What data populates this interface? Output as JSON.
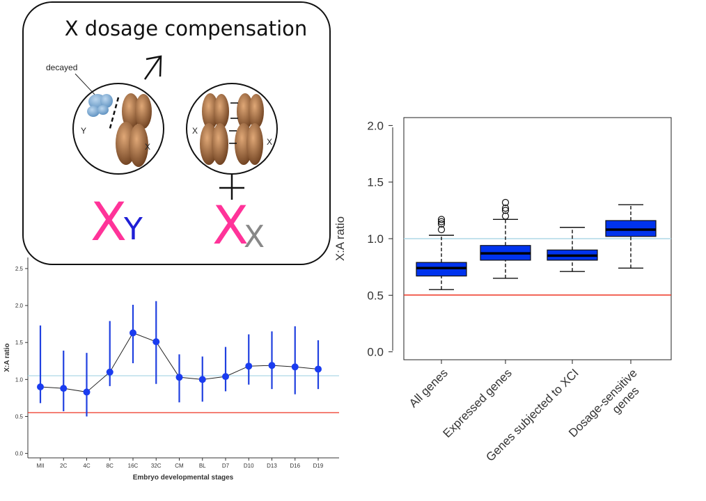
{
  "diagram": {
    "title": "X dosage compensation",
    "decayed_label": "decayed",
    "male_left_label": "Y",
    "male_right_label": "X",
    "female_left_label": "X",
    "female_right_label": "X",
    "male_big_letter": "X",
    "male_small_letter": "Y",
    "female_big_letter": "X",
    "female_small_letter": "X",
    "male_symbol": "male-symbol",
    "female_symbol": "female-symbol",
    "colors": {
      "big_x": "#ff3399",
      "small_y": "#1f1fd6",
      "small_x": "#888888",
      "chromosome": "#b0744a",
      "decayed_y": "#7fb0df"
    }
  },
  "chart_data": [
    {
      "type": "line",
      "ylabel": "X:A ratio",
      "xlabel": "Embryo developmental stages",
      "categories": [
        "MII",
        "2C",
        "4C",
        "8C",
        "16C",
        "32C",
        "CM",
        "BL",
        "D7",
        "D10",
        "D13",
        "D16",
        "D19"
      ],
      "values": [
        0.9,
        0.88,
        0.83,
        1.1,
        1.63,
        1.51,
        1.03,
        1.0,
        1.04,
        1.18,
        1.19,
        1.17,
        1.14
      ],
      "lower": [
        0.68,
        0.57,
        0.5,
        0.91,
        1.22,
        0.94,
        0.69,
        0.7,
        0.84,
        0.93,
        0.87,
        0.8,
        0.87
      ],
      "upper": [
        1.73,
        1.39,
        1.36,
        1.79,
        2.01,
        2.06,
        1.34,
        1.31,
        1.44,
        1.61,
        1.65,
        1.72,
        1.53
      ],
      "yticks": [
        "0.0",
        "0.5",
        "1.0",
        "1.5",
        "2.0",
        "2.5"
      ],
      "ylim": [
        -0.06,
        2.65
      ],
      "reference_lines": [
        1.0,
        0.5
      ],
      "grid": false
    },
    {
      "type": "box",
      "ylabel": "X:A ratio",
      "categories": [
        "All genes",
        "Expressed genes",
        "Genes subjected to XCI",
        "Dosage-sensitive genes"
      ],
      "series": [
        {
          "whisker_low": 0.55,
          "q1": 0.67,
          "median": 0.74,
          "q3": 0.79,
          "whisker_high": 1.03,
          "outliers": [
            1.08,
            1.13,
            1.15,
            1.17
          ]
        },
        {
          "whisker_low": 0.65,
          "q1": 0.81,
          "median": 0.87,
          "q3": 0.94,
          "whisker_high": 1.17,
          "outliers": [
            1.2,
            1.25,
            1.27,
            1.32
          ]
        },
        {
          "whisker_low": 0.71,
          "q1": 0.81,
          "median": 0.85,
          "q3": 0.9,
          "whisker_high": 1.1,
          "outliers": []
        },
        {
          "whisker_low": 0.74,
          "q1": 1.02,
          "median": 1.08,
          "q3": 1.16,
          "whisker_high": 1.3,
          "outliers": []
        }
      ],
      "yticks": [
        "0.0",
        "0.5",
        "1.0",
        "1.5",
        "2.0"
      ],
      "ylim": [
        -0.07,
        2.07
      ],
      "reference_lines": [
        1.0,
        0.5
      ],
      "colors": {
        "box": "#0033ee",
        "ref_high": "#add8e6",
        "ref_low": "#ee3322"
      }
    }
  ]
}
